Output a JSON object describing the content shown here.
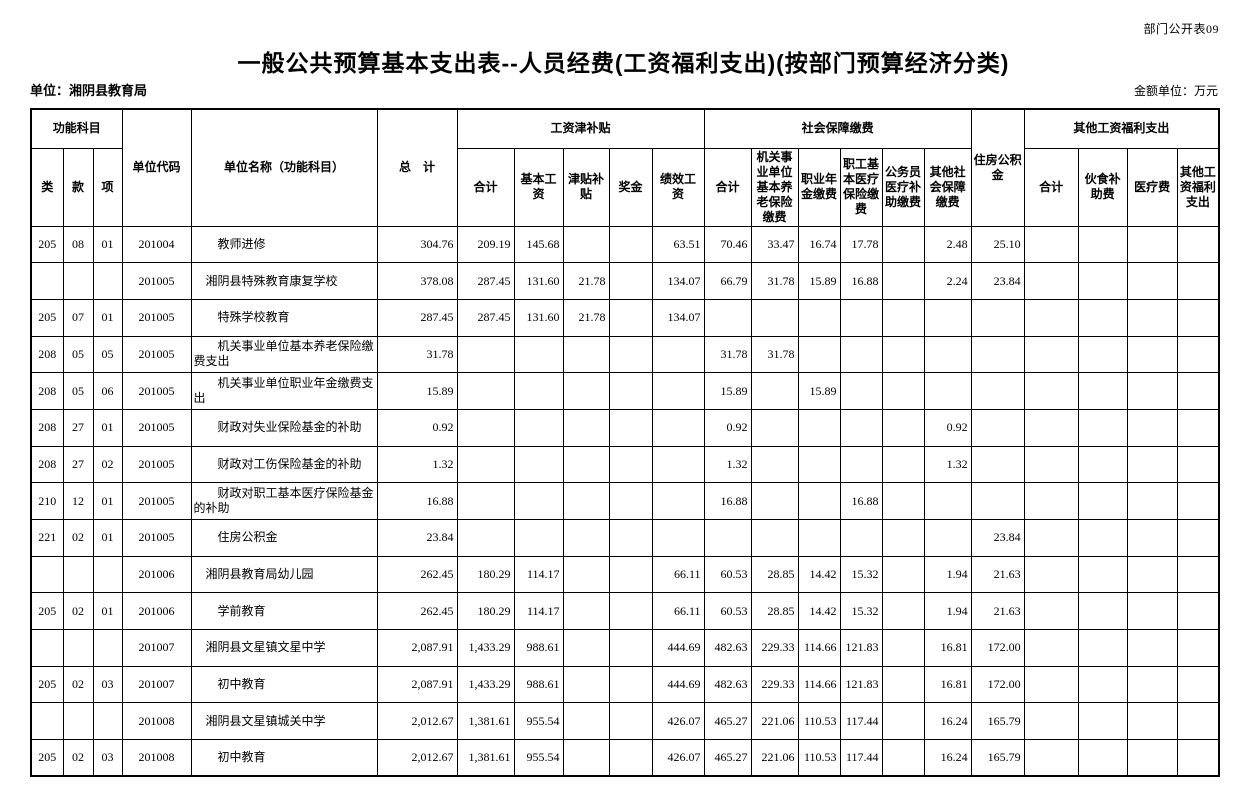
{
  "meta": {
    "sheet_label": "部门公开表09",
    "title": "一般公共预算基本支出表--人员经费(工资福利支出)(按部门预算经济分类)",
    "unit_label": "单位：湘阴县教育局",
    "amount_unit_label": "金额单位：万元"
  },
  "table": {
    "header": {
      "func_subject_group": "功能科目",
      "cls": "类",
      "section": "款",
      "item": "项",
      "unit_code": "单位代码",
      "unit_name": "单位名称（功能科目）",
      "grand_total": "总　计",
      "salary_group": "工资津补贴",
      "salary_cols": [
        "合计",
        "基本工资",
        "津贴补贴",
        "奖金",
        "绩效工资"
      ],
      "social_group": "社会保障缴费",
      "social_cols": [
        "合计",
        "机关事业单位基本养老保险缴费",
        "职业年金缴费",
        "职工基本医疗保险缴费",
        "公务员医疗补助缴费",
        "其他社会保障缴费"
      ],
      "housing_fund": "住房公积金",
      "other_group": "其他工资福利支出",
      "other_cols": [
        "合计",
        "伙食补助费",
        "医疗费",
        "其他工资福利支出"
      ]
    },
    "rows": [
      {
        "cls": "205",
        "section": "08",
        "item": "01",
        "code": "201004",
        "name": "教师进修",
        "indent": 2,
        "values": [
          "304.76",
          "209.19",
          "145.68",
          "",
          "",
          "63.51",
          "70.46",
          "33.47",
          "16.74",
          "17.78",
          "",
          "2.48",
          "25.10",
          "",
          "",
          "",
          ""
        ]
      },
      {
        "cls": "",
        "section": "",
        "item": "",
        "code": "201005",
        "name": "湘阴县特殊教育康复学校",
        "indent": 1,
        "values": [
          "378.08",
          "287.45",
          "131.60",
          "21.78",
          "",
          "134.07",
          "66.79",
          "31.78",
          "15.89",
          "16.88",
          "",
          "2.24",
          "23.84",
          "",
          "",
          "",
          ""
        ]
      },
      {
        "cls": "205",
        "section": "07",
        "item": "01",
        "code": "201005",
        "name": "特殊学校教育",
        "indent": 2,
        "values": [
          "287.45",
          "287.45",
          "131.60",
          "21.78",
          "",
          "134.07",
          "",
          "",
          "",
          "",
          "",
          "",
          "",
          "",
          "",
          "",
          ""
        ]
      },
      {
        "cls": "208",
        "section": "05",
        "item": "05",
        "code": "201005",
        "name": "机关事业单位基本养老保险缴费支出",
        "indent": 2,
        "values": [
          "31.78",
          "",
          "",
          "",
          "",
          "",
          "31.78",
          "31.78",
          "",
          "",
          "",
          "",
          "",
          "",
          "",
          "",
          ""
        ]
      },
      {
        "cls": "208",
        "section": "05",
        "item": "06",
        "code": "201005",
        "name": "机关事业单位职业年金缴费支出",
        "indent": 2,
        "values": [
          "15.89",
          "",
          "",
          "",
          "",
          "",
          "15.89",
          "",
          "15.89",
          "",
          "",
          "",
          "",
          "",
          "",
          "",
          ""
        ]
      },
      {
        "cls": "208",
        "section": "27",
        "item": "01",
        "code": "201005",
        "name": "财政对失业保险基金的补助",
        "indent": 2,
        "values": [
          "0.92",
          "",
          "",
          "",
          "",
          "",
          "0.92",
          "",
          "",
          "",
          "",
          "0.92",
          "",
          "",
          "",
          "",
          ""
        ]
      },
      {
        "cls": "208",
        "section": "27",
        "item": "02",
        "code": "201005",
        "name": "财政对工伤保险基金的补助",
        "indent": 2,
        "values": [
          "1.32",
          "",
          "",
          "",
          "",
          "",
          "1.32",
          "",
          "",
          "",
          "",
          "1.32",
          "",
          "",
          "",
          "",
          ""
        ]
      },
      {
        "cls": "210",
        "section": "12",
        "item": "01",
        "code": "201005",
        "name": "财政对职工基本医疗保险基金的补助",
        "indent": 2,
        "values": [
          "16.88",
          "",
          "",
          "",
          "",
          "",
          "16.88",
          "",
          "",
          "16.88",
          "",
          "",
          "",
          "",
          "",
          "",
          ""
        ]
      },
      {
        "cls": "221",
        "section": "02",
        "item": "01",
        "code": "201005",
        "name": "住房公积金",
        "indent": 2,
        "values": [
          "23.84",
          "",
          "",
          "",
          "",
          "",
          "",
          "",
          "",
          "",
          "",
          "",
          "23.84",
          "",
          "",
          "",
          ""
        ]
      },
      {
        "cls": "",
        "section": "",
        "item": "",
        "code": "201006",
        "name": "湘阴县教育局幼儿园",
        "indent": 1,
        "values": [
          "262.45",
          "180.29",
          "114.17",
          "",
          "",
          "66.11",
          "60.53",
          "28.85",
          "14.42",
          "15.32",
          "",
          "1.94",
          "21.63",
          "",
          "",
          "",
          ""
        ]
      },
      {
        "cls": "205",
        "section": "02",
        "item": "01",
        "code": "201006",
        "name": "学前教育",
        "indent": 2,
        "values": [
          "262.45",
          "180.29",
          "114.17",
          "",
          "",
          "66.11",
          "60.53",
          "28.85",
          "14.42",
          "15.32",
          "",
          "1.94",
          "21.63",
          "",
          "",
          "",
          ""
        ]
      },
      {
        "cls": "",
        "section": "",
        "item": "",
        "code": "201007",
        "name": "湘阴县文星镇文星中学",
        "indent": 1,
        "values": [
          "2,087.91",
          "1,433.29",
          "988.61",
          "",
          "",
          "444.69",
          "482.63",
          "229.33",
          "114.66",
          "121.83",
          "",
          "16.81",
          "172.00",
          "",
          "",
          "",
          ""
        ]
      },
      {
        "cls": "205",
        "section": "02",
        "item": "03",
        "code": "201007",
        "name": "初中教育",
        "indent": 2,
        "values": [
          "2,087.91",
          "1,433.29",
          "988.61",
          "",
          "",
          "444.69",
          "482.63",
          "229.33",
          "114.66",
          "121.83",
          "",
          "16.81",
          "172.00",
          "",
          "",
          "",
          ""
        ]
      },
      {
        "cls": "",
        "section": "",
        "item": "",
        "code": "201008",
        "name": "湘阴县文星镇城关中学",
        "indent": 1,
        "values": [
          "2,012.67",
          "1,381.61",
          "955.54",
          "",
          "",
          "426.07",
          "465.27",
          "221.06",
          "110.53",
          "117.44",
          "",
          "16.24",
          "165.79",
          "",
          "",
          "",
          ""
        ]
      },
      {
        "cls": "205",
        "section": "02",
        "item": "03",
        "code": "201008",
        "name": "初中教育",
        "indent": 2,
        "values": [
          "2,012.67",
          "1,381.61",
          "955.54",
          "",
          "",
          "426.07",
          "465.27",
          "221.06",
          "110.53",
          "117.44",
          "",
          "16.24",
          "165.79",
          "",
          "",
          "",
          ""
        ]
      }
    ]
  }
}
